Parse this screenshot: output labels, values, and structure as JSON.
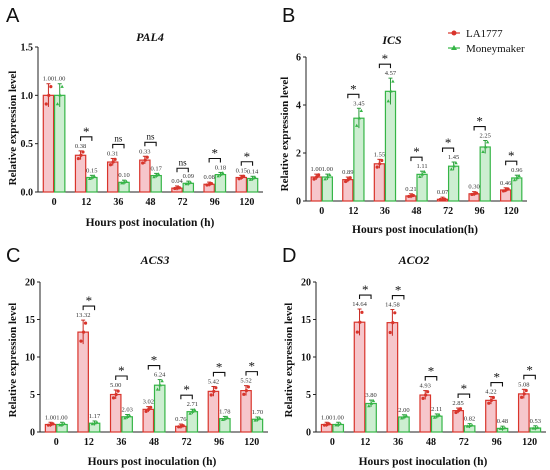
{
  "colors": {
    "la1777": "#d9342b",
    "moneymaker": "#35b546",
    "la1777_err": "#c72a22",
    "moneymaker_err": "#2c9b3c",
    "la1777_fill": "#f6c6cb",
    "moneymaker_fill": "#cdeed1",
    "axis": "#222222"
  },
  "legend": {
    "items": [
      {
        "label": "LA1777",
        "color": "#d9342b"
      },
      {
        "label": "Moneymaker",
        "color": "#35b546"
      }
    ]
  },
  "chart_data": [
    {
      "type": "bar",
      "panel_letter": "A",
      "title": "PAL4",
      "xlabel": "Hours post inoculation (h)",
      "ylabel": "Relative expression level",
      "categories": [
        "0",
        "12",
        "36",
        "48",
        "72",
        "96",
        "120"
      ],
      "ylim": [
        0,
        1.5
      ],
      "yticks": [
        "0.0",
        "0.5",
        "1.0",
        "1.5"
      ],
      "grid": false,
      "series": [
        {
          "name": "LA1777",
          "values": [
            1.0,
            0.38,
            0.31,
            0.33,
            0.04,
            0.08,
            0.15
          ],
          "labels": [
            "1.00",
            "0.38",
            "0.31",
            "0.33",
            "0.04",
            "0.08",
            "0.15"
          ]
        },
        {
          "name": "Moneymaker",
          "values": [
            1.0,
            0.15,
            0.1,
            0.17,
            0.09,
            0.18,
            0.14
          ],
          "labels": [
            "1.00",
            "0.15",
            "0.10",
            "0.17",
            "0.09",
            "0.18",
            "0.14"
          ]
        }
      ],
      "significance": [
        {
          "category": "12",
          "mark": "*"
        },
        {
          "category": "36",
          "mark": "ns"
        },
        {
          "category": "48",
          "mark": "ns"
        },
        {
          "category": "72",
          "mark": "ns"
        },
        {
          "category": "96",
          "mark": "*"
        },
        {
          "category": "120",
          "mark": "*"
        }
      ]
    },
    {
      "type": "bar",
      "panel_letter": "B",
      "title": "ICS",
      "xlabel": "Hours post inoculation(h)",
      "ylabel": "Relative expression level",
      "categories": [
        "0",
        "12",
        "36",
        "48",
        "72",
        "96",
        "120"
      ],
      "ylim": [
        0,
        6
      ],
      "yticks": [
        "0",
        "2",
        "4",
        "6"
      ],
      "grid": false,
      "series": [
        {
          "name": "LA1777",
          "values": [
            1.0,
            0.89,
            1.55,
            0.21,
            0.07,
            0.3,
            0.46
          ],
          "labels": [
            "1.00",
            "0.89",
            "1.55",
            "0.21",
            "0.07",
            "0.30",
            "0.46"
          ]
        },
        {
          "name": "Moneymaker",
          "values": [
            1.0,
            3.45,
            4.57,
            1.11,
            1.45,
            2.25,
            0.96
          ],
          "labels": [
            "1.00",
            "3.45",
            "4.57",
            "1.11",
            "1.45",
            "2.25",
            "0.96"
          ]
        }
      ],
      "significance": [
        {
          "category": "12",
          "mark": "*"
        },
        {
          "category": "36",
          "mark": "*"
        },
        {
          "category": "48",
          "mark": "*"
        },
        {
          "category": "72",
          "mark": "*"
        },
        {
          "category": "96",
          "mark": "*"
        },
        {
          "category": "120",
          "mark": "*"
        }
      ]
    },
    {
      "type": "bar",
      "panel_letter": "C",
      "title": "ACS3",
      "xlabel": "Hours post inoculation (h)",
      "ylabel": "Relative expression level",
      "categories": [
        "0",
        "12",
        "36",
        "48",
        "72",
        "96",
        "120"
      ],
      "ylim": [
        0,
        20
      ],
      "yticks": [
        "0",
        "5",
        "10",
        "15",
        "20"
      ],
      "grid": false,
      "series": [
        {
          "name": "LA1777",
          "values": [
            1.0,
            13.32,
            5.0,
            3.02,
            0.76,
            5.42,
            5.52
          ],
          "labels": [
            "1.00",
            "13.32",
            "5.00",
            "3.02",
            "0.76",
            "5.42",
            "5.52"
          ]
        },
        {
          "name": "Moneymaker",
          "values": [
            1.0,
            1.17,
            2.03,
            6.24,
            2.71,
            1.78,
            1.7
          ],
          "labels": [
            "1.00",
            "1.17",
            "2.03",
            "6.24",
            "2.71",
            "1.78",
            "1.70"
          ]
        }
      ],
      "significance": [
        {
          "category": "12",
          "mark": "*"
        },
        {
          "category": "36",
          "mark": "*"
        },
        {
          "category": "48",
          "mark": "*"
        },
        {
          "category": "72",
          "mark": "*"
        },
        {
          "category": "96",
          "mark": "*"
        },
        {
          "category": "120",
          "mark": "*"
        }
      ]
    },
    {
      "type": "bar",
      "panel_letter": "D",
      "title": "ACO2",
      "xlabel": "Hours post inoculation (h)",
      "ylabel": "Relative expression level",
      "categories": [
        "0",
        "12",
        "36",
        "48",
        "72",
        "96",
        "120"
      ],
      "ylim": [
        0,
        20
      ],
      "yticks": [
        "0",
        "5",
        "10",
        "15",
        "20"
      ],
      "grid": false,
      "series": [
        {
          "name": "LA1777",
          "values": [
            1.0,
            14.64,
            14.58,
            4.93,
            2.85,
            4.22,
            5.08
          ],
          "labels": [
            "1.00",
            "14.64",
            "14.58",
            "4.93",
            "2.85",
            "4.22",
            "5.08"
          ]
        },
        {
          "name": "Moneymaker",
          "values": [
            1.0,
            3.8,
            2.0,
            2.11,
            0.82,
            0.48,
            0.53
          ],
          "labels": [
            "1.00",
            "3.80",
            "2.00",
            "2.11",
            "0.82",
            "0.48",
            "0.53"
          ]
        }
      ],
      "significance": [
        {
          "category": "12",
          "mark": "*"
        },
        {
          "category": "36",
          "mark": "*"
        },
        {
          "category": "48",
          "mark": "*"
        },
        {
          "category": "72",
          "mark": "*"
        },
        {
          "category": "96",
          "mark": "*"
        },
        {
          "category": "120",
          "mark": "*"
        }
      ]
    }
  ]
}
